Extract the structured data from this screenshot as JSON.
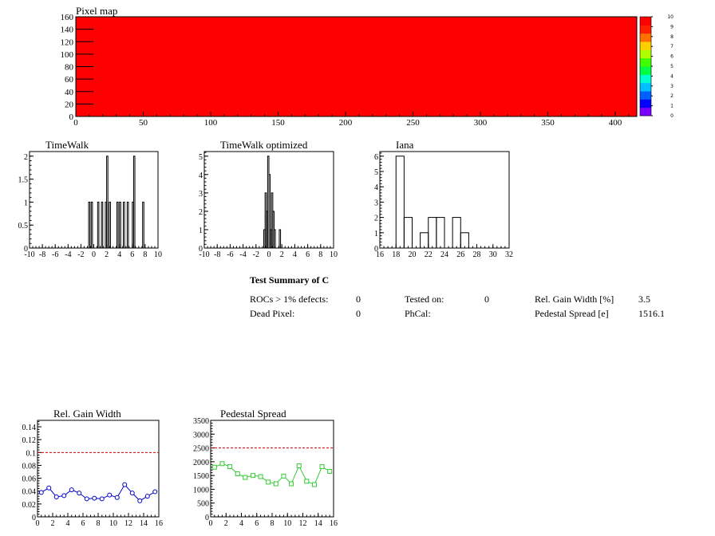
{
  "pixel_map": {
    "title": "Pixel map",
    "x_ticks": [
      0,
      50,
      100,
      150,
      200,
      250,
      300,
      350,
      400
    ],
    "y_ticks": [
      0,
      20,
      40,
      60,
      80,
      100,
      120,
      140,
      160
    ],
    "fill_color": "#ff0000",
    "palette_labels": [
      "0",
      "1",
      "2",
      "3",
      "4",
      "5",
      "6",
      "7",
      "8",
      "9",
      "10"
    ],
    "palette_colors": [
      "#7a00ff",
      "#0000ff",
      "#0060ff",
      "#00c0ff",
      "#00ffd0",
      "#00ff40",
      "#40ff00",
      "#b0ff00",
      "#ffd000",
      "#ff7000",
      "#ff2000",
      "#ff0000"
    ]
  },
  "summary": {
    "title": "Test Summary of C",
    "rows": [
      [
        "ROCs > 1% defects:",
        "0",
        "Tested on:",
        "0",
        "Rel. Gain Width [%]",
        "3.5"
      ],
      [
        "Dead Pixel:",
        "0",
        "PhCal:",
        "",
        "Pedestal Spread [e]",
        "1516.1"
      ]
    ]
  },
  "chart_data": [
    {
      "type": "bar",
      "title": "TimeWalk",
      "x_ticks": [
        "-10",
        "-8",
        "-6",
        "-4",
        "-2",
        "0",
        "2",
        "4",
        "6",
        "8",
        "10"
      ],
      "y_ticks": [
        "0",
        "0.5",
        "1",
        "1.5",
        "2"
      ],
      "xlim": [
        -10,
        10
      ],
      "ylim": [
        0,
        2.1
      ],
      "bars": [
        {
          "x": -0.8,
          "y": 1
        },
        {
          "x": -0.4,
          "y": 1
        },
        {
          "x": 0.6,
          "y": 1
        },
        {
          "x": 1.2,
          "y": 1
        },
        {
          "x": 1.8,
          "y": 1
        },
        {
          "x": 2.0,
          "y": 2
        },
        {
          "x": 2.4,
          "y": 1
        },
        {
          "x": 3.6,
          "y": 1
        },
        {
          "x": 4.0,
          "y": 1
        },
        {
          "x": 4.6,
          "y": 1
        },
        {
          "x": 5.2,
          "y": 1
        },
        {
          "x": 6.0,
          "y": 1
        },
        {
          "x": 6.2,
          "y": 2
        },
        {
          "x": 7.6,
          "y": 1
        }
      ],
      "bin_width": 0.2
    },
    {
      "type": "bar",
      "title": "TimeWalk optimized",
      "x_ticks": [
        "-10",
        "-8",
        "-6",
        "-4",
        "-2",
        "0",
        "2",
        "4",
        "6",
        "8",
        "10"
      ],
      "y_ticks": [
        "0",
        "1",
        "2",
        "3",
        "4",
        "5"
      ],
      "xlim": [
        -10,
        10
      ],
      "ylim": [
        0,
        5.25
      ],
      "bars": [
        {
          "x": -0.8,
          "y": 1
        },
        {
          "x": -0.6,
          "y": 3
        },
        {
          "x": -0.4,
          "y": 2
        },
        {
          "x": -0.2,
          "y": 5
        },
        {
          "x": 0.0,
          "y": 4
        },
        {
          "x": 0.2,
          "y": 1
        },
        {
          "x": 0.4,
          "y": 3
        },
        {
          "x": 0.6,
          "y": 2
        },
        {
          "x": 0.8,
          "y": 1
        },
        {
          "x": 1.6,
          "y": 1
        }
      ],
      "bin_width": 0.2
    },
    {
      "type": "bar",
      "title": "Iana",
      "x_ticks": [
        "16",
        "18",
        "20",
        "22",
        "24",
        "26",
        "28",
        "30",
        "32"
      ],
      "y_ticks": [
        "0",
        "1",
        "2",
        "3",
        "4",
        "5",
        "6"
      ],
      "xlim": [
        16,
        32
      ],
      "ylim": [
        0,
        6.3
      ],
      "bars": [
        {
          "x": 18,
          "y": 6
        },
        {
          "x": 19,
          "y": 2
        },
        {
          "x": 21,
          "y": 1
        },
        {
          "x": 22,
          "y": 2
        },
        {
          "x": 23,
          "y": 2
        },
        {
          "x": 25,
          "y": 2
        },
        {
          "x": 26,
          "y": 1
        }
      ],
      "bin_width": 1
    },
    {
      "type": "line",
      "title": "Rel. Gain Width",
      "x_ticks": [
        "0",
        "2",
        "4",
        "6",
        "8",
        "10",
        "12",
        "14",
        "16"
      ],
      "y_ticks": [
        "0",
        "0.02",
        "0.04",
        "0.06",
        "0.08",
        "0.1",
        "0.12",
        "0.14"
      ],
      "xlim": [
        0,
        16
      ],
      "ylim": [
        0,
        0.15
      ],
      "reference": 0.1,
      "marker": "circle",
      "color": "#0000cc",
      "x": [
        0.5,
        1.5,
        2.5,
        3.5,
        4.5,
        5.5,
        6.5,
        7.5,
        8.5,
        9.5,
        10.5,
        11.5,
        12.5,
        13.5,
        14.5,
        15.5
      ],
      "y": [
        0.038,
        0.045,
        0.031,
        0.033,
        0.042,
        0.037,
        0.028,
        0.029,
        0.028,
        0.034,
        0.03,
        0.05,
        0.037,
        0.025,
        0.032,
        0.039
      ]
    },
    {
      "type": "line",
      "title": "Pedestal Spread",
      "x_ticks": [
        "0",
        "2",
        "4",
        "6",
        "8",
        "10",
        "12",
        "14",
        "16"
      ],
      "y_ticks": [
        "0",
        "500",
        "1000",
        "1500",
        "2000",
        "2500",
        "3000",
        "3500"
      ],
      "xlim": [
        0,
        16
      ],
      "ylim": [
        0,
        3500
      ],
      "reference": 2500,
      "marker": "square",
      "color": "#33cc33",
      "x": [
        0.5,
        1.5,
        2.5,
        3.5,
        4.5,
        5.5,
        6.5,
        7.5,
        8.5,
        9.5,
        10.5,
        11.5,
        12.5,
        13.5,
        14.5,
        15.5
      ],
      "y": [
        1800,
        1930,
        1820,
        1560,
        1430,
        1500,
        1460,
        1260,
        1200,
        1480,
        1200,
        1850,
        1290,
        1170,
        1820,
        1650
      ]
    }
  ]
}
